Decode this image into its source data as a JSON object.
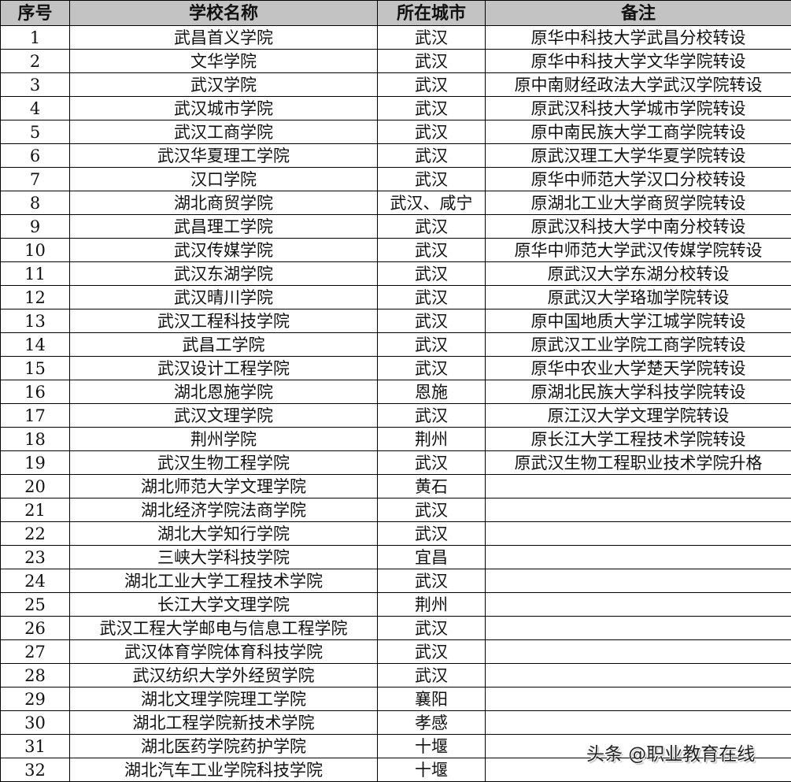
{
  "headers": [
    "序号",
    "学校名称",
    "所在城市",
    "备注"
  ],
  "rows": [
    [
      "1",
      "武昌首义学院",
      "武汉",
      "原华中科技大学武昌分校转设"
    ],
    [
      "2",
      "文华学院",
      "武汉",
      "原华中科技大学文华学院转设"
    ],
    [
      "3",
      "武汉学院",
      "武汉",
      "原中南财经政法大学武汉学院转设"
    ],
    [
      "4",
      "武汉城市学院",
      "武汉",
      "原武汉科技大学城市学院转设"
    ],
    [
      "5",
      "武汉工商学院",
      "武汉",
      "原中南民族大学工商学院转设"
    ],
    [
      "6",
      "武汉华夏理工学院",
      "武汉",
      "原武汉理工大学华夏学院转设"
    ],
    [
      "7",
      "汉口学院",
      "武汉",
      "原华中师范大学汉口分校转设"
    ],
    [
      "8",
      "湖北商贸学院",
      "武汉、咸宁",
      "原湖北工业大学商贸学院转设"
    ],
    [
      "9",
      "武昌理工学院",
      "武汉",
      "原武汉科技大学中南分校转设"
    ],
    [
      "10",
      "武汉传媒学院",
      "武汉",
      "原华中师范大学武汉传媒学院转设"
    ],
    [
      "11",
      "武汉东湖学院",
      "武汉",
      "原武汉大学东湖分校转设"
    ],
    [
      "12",
      "武汉晴川学院",
      "武汉",
      "原武汉大学珞珈学院转设"
    ],
    [
      "13",
      "武汉工程科技学院",
      "武汉",
      "原中国地质大学江城学院转设"
    ],
    [
      "14",
      "武昌工学院",
      "武汉",
      "原武汉工业学院工商学院转设"
    ],
    [
      "15",
      "武汉设计工程学院",
      "武汉",
      "原华中农业大学楚天学院转设"
    ],
    [
      "16",
      "湖北恩施学院",
      "恩施",
      "原湖北民族大学科技学院转设"
    ],
    [
      "17",
      "武汉文理学院",
      "武汉",
      "原江汉大学文理学院转设"
    ],
    [
      "18",
      "荆州学院",
      "荆州",
      "原长江大学工程技术学院转设"
    ],
    [
      "19",
      "武汉生物工程学院",
      "武汉",
      "原武汉生物工程职业技术学院升格"
    ],
    [
      "20",
      "湖北师范大学文理学院",
      "黄石",
      ""
    ],
    [
      "21",
      "湖北经济学院法商学院",
      "武汉",
      ""
    ],
    [
      "22",
      "湖北大学知行学院",
      "武汉",
      ""
    ],
    [
      "23",
      "三峡大学科技学院",
      "宜昌",
      ""
    ],
    [
      "24",
      "湖北工业大学工程技术学院",
      "武汉",
      ""
    ],
    [
      "25",
      "长江大学文理学院",
      "荆州",
      ""
    ],
    [
      "26",
      "武汉工程大学邮电与信息工程学院",
      "武汉",
      ""
    ],
    [
      "27",
      "武汉体育学院体育科技学院",
      "武汉",
      ""
    ],
    [
      "28",
      "武汉纺织大学外经贸学院",
      "武汉",
      ""
    ],
    [
      "29",
      "湖北文理学院理工学院",
      "襄阳",
      ""
    ],
    [
      "30",
      "湖北工程学院新技术学院",
      "孝感",
      ""
    ],
    [
      "31",
      "湖北医药学院药护学院",
      "十堰",
      ""
    ],
    [
      "32",
      "湖北汽车工业学院科技学院",
      "十堰",
      ""
    ]
  ],
  "watermark": "头条 @职业教育在线",
  "colors": {
    "header_bg": "#c3c3c3",
    "border": "#000000"
  }
}
